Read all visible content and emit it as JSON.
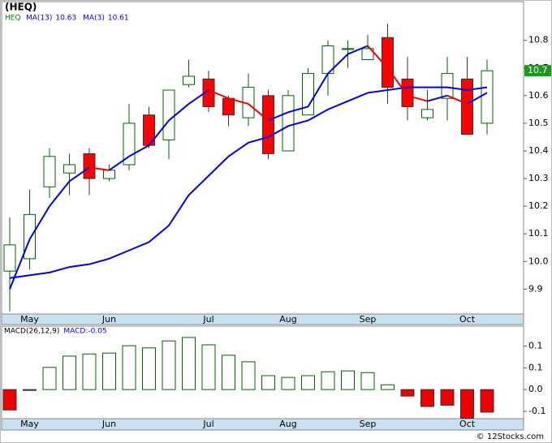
{
  "chart_data": [
    {
      "type": "candlestick",
      "title": "(HEQ)",
      "name": "HEQ",
      "name_color": "#008000",
      "categories": [
        null,
        "May",
        null,
        null,
        null,
        "Jun",
        null,
        null,
        null,
        null,
        "Jul",
        null,
        null,
        null,
        "Aug",
        null,
        null,
        null,
        "Sep",
        null,
        null,
        null,
        null,
        "Oct",
        null
      ],
      "open": [
        9.965,
        10.01,
        10.27,
        10.32,
        10.39,
        10.3,
        10.35,
        10.53,
        10.44,
        10.64,
        10.66,
        10.59,
        10.52,
        10.6,
        10.4,
        10.53,
        10.68,
        10.77,
        10.73,
        10.81,
        10.66,
        10.52,
        10.59,
        10.66,
        10.5
      ],
      "high": [
        10.16,
        10.26,
        10.41,
        10.39,
        10.41,
        10.35,
        10.57,
        10.56,
        10.62,
        10.73,
        10.69,
        10.6,
        10.68,
        10.62,
        10.62,
        10.7,
        10.8,
        10.8,
        10.82,
        10.86,
        10.74,
        10.62,
        10.74,
        10.74,
        10.73
      ],
      "low": [
        9.82,
        9.97,
        10.23,
        10.24,
        10.24,
        10.29,
        10.33,
        10.41,
        10.37,
        10.63,
        10.54,
        10.49,
        10.49,
        10.37,
        10.4,
        10.53,
        10.6,
        10.7,
        10.73,
        10.57,
        10.51,
        10.51,
        10.51,
        10.46,
        10.46
      ],
      "close": [
        10.06,
        10.17,
        10.38,
        10.35,
        10.3,
        10.33,
        10.5,
        10.42,
        10.62,
        10.67,
        10.56,
        10.53,
        10.63,
        10.39,
        10.6,
        10.68,
        10.78,
        10.77,
        10.77,
        10.63,
        10.56,
        10.55,
        10.68,
        10.46,
        10.69
      ],
      "up_color": "#ffffff",
      "up_edge_color": "#006400",
      "down_color": "#ff0000",
      "down_edge_color": "#333333",
      "ylim": [
        9.81,
        10.94
      ],
      "yticks": [
        9.9,
        {
          "value": 10,
          "label": "10.0"
        },
        10.1,
        10.2,
        10.3,
        10.4,
        10.5,
        10.6,
        10.7,
        10.8
      ],
      "current_price": {
        "value": 10.69,
        "label": "10.7"
      },
      "current_price_color": "#1a9a1a",
      "series": [
        {
          "name": "MA(13)",
          "color": "#0000dd",
          "legend_value": "10.63",
          "values": [
            9.94,
            9.95,
            9.96,
            9.98,
            9.99,
            10.01,
            10.04,
            10.07,
            10.13,
            10.24,
            10.31,
            10.38,
            10.43,
            10.45,
            10.49,
            10.51,
            10.55,
            10.58,
            10.61,
            10.62,
            10.63,
            10.63,
            10.63,
            10.62,
            10.63
          ]
        },
        {
          "name": "MA(3)",
          "color": "#0000dd",
          "down_color": "#ee0000",
          "legend_value": "10.61",
          "values": [
            9.9,
            10.08,
            10.2,
            10.29,
            10.34,
            10.33,
            10.38,
            10.42,
            10.51,
            10.57,
            10.62,
            10.59,
            10.57,
            10.51,
            10.54,
            10.56,
            10.68,
            10.75,
            10.78,
            10.7,
            10.6,
            10.58,
            10.6,
            10.57,
            10.61
          ]
        }
      ]
    },
    {
      "type": "bar",
      "title": "MACD(26,12,9)",
      "legend": "MACD:-0.05",
      "legend_color": "#0000dd",
      "categories": [
        null,
        "May",
        null,
        null,
        null,
        "Jun",
        null,
        null,
        null,
        null,
        "Jul",
        null,
        null,
        null,
        "Aug",
        null,
        null,
        null,
        "Sep",
        null,
        null,
        null,
        null,
        "Oct",
        null
      ],
      "values": [
        -0.047,
        -0.002,
        0.051,
        0.077,
        0.082,
        0.084,
        0.101,
        0.096,
        0.112,
        0.12,
        0.103,
        0.079,
        0.064,
        0.032,
        0.028,
        0.032,
        0.041,
        0.043,
        0.039,
        0.011,
        -0.015,
        -0.039,
        -0.036,
        -0.066,
        -0.052
      ],
      "pos_color": "#ffffff",
      "pos_edge_color": "#006400",
      "neg_color": "#ee0000",
      "neg_edge_color": "#333333",
      "ylim": [
        -0.067,
        0.146
      ],
      "yticks": [
        {
          "value": 0.1,
          "label": "0.1"
        },
        {
          "value": 0.05,
          "label": "0.1"
        },
        {
          "value": 0,
          "label": "0.0"
        },
        {
          "value": -0.05,
          "label": "-0.1"
        }
      ]
    }
  ],
  "footer": "© 12Stocks.com"
}
